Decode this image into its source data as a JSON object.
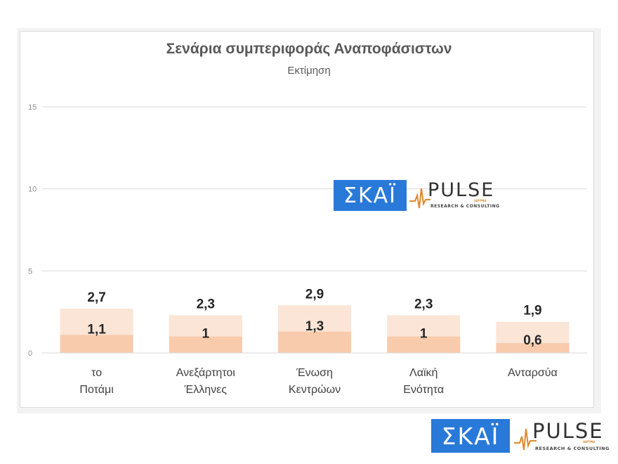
{
  "chart_data": {
    "type": "bar",
    "title": "Σενάρια συμπεριφοράς Αναποφάσιστων",
    "subtitle": "Εκτίμηση",
    "categories": [
      [
        "το",
        "Ποτάμι"
      ],
      [
        "Ανεξάρτητοι",
        "Έλληνες"
      ],
      [
        "Ένωση",
        "Κεντρώων"
      ],
      [
        "Λαϊκή",
        "Ενότητα"
      ],
      [
        "Ανταρσύα"
      ]
    ],
    "series": [
      {
        "values": [
          2.7,
          2.3,
          2.9,
          2.3,
          1.9
        ],
        "labels": [
          "2,7",
          "2,3",
          "2,9",
          "2,3",
          "1,9"
        ],
        "color": "#fbe5d6"
      },
      {
        "values": [
          1.1,
          1.0,
          1.3,
          1.0,
          0.6
        ],
        "labels": [
          "1,1",
          "1",
          "1,3",
          "1",
          "0,6"
        ],
        "color": "#f8cbad"
      }
    ],
    "ylim": [
      0,
      15
    ],
    "yticks": [
      0,
      5,
      10,
      15
    ],
    "grid": true
  },
  "logos": {
    "skai": "ΣΚΑΪ",
    "pulse": "PULSE",
    "pulse_tagline": "RESEARCH & CONSULTING",
    "pulse_since": "ΙΔΡΥΜΑ"
  }
}
